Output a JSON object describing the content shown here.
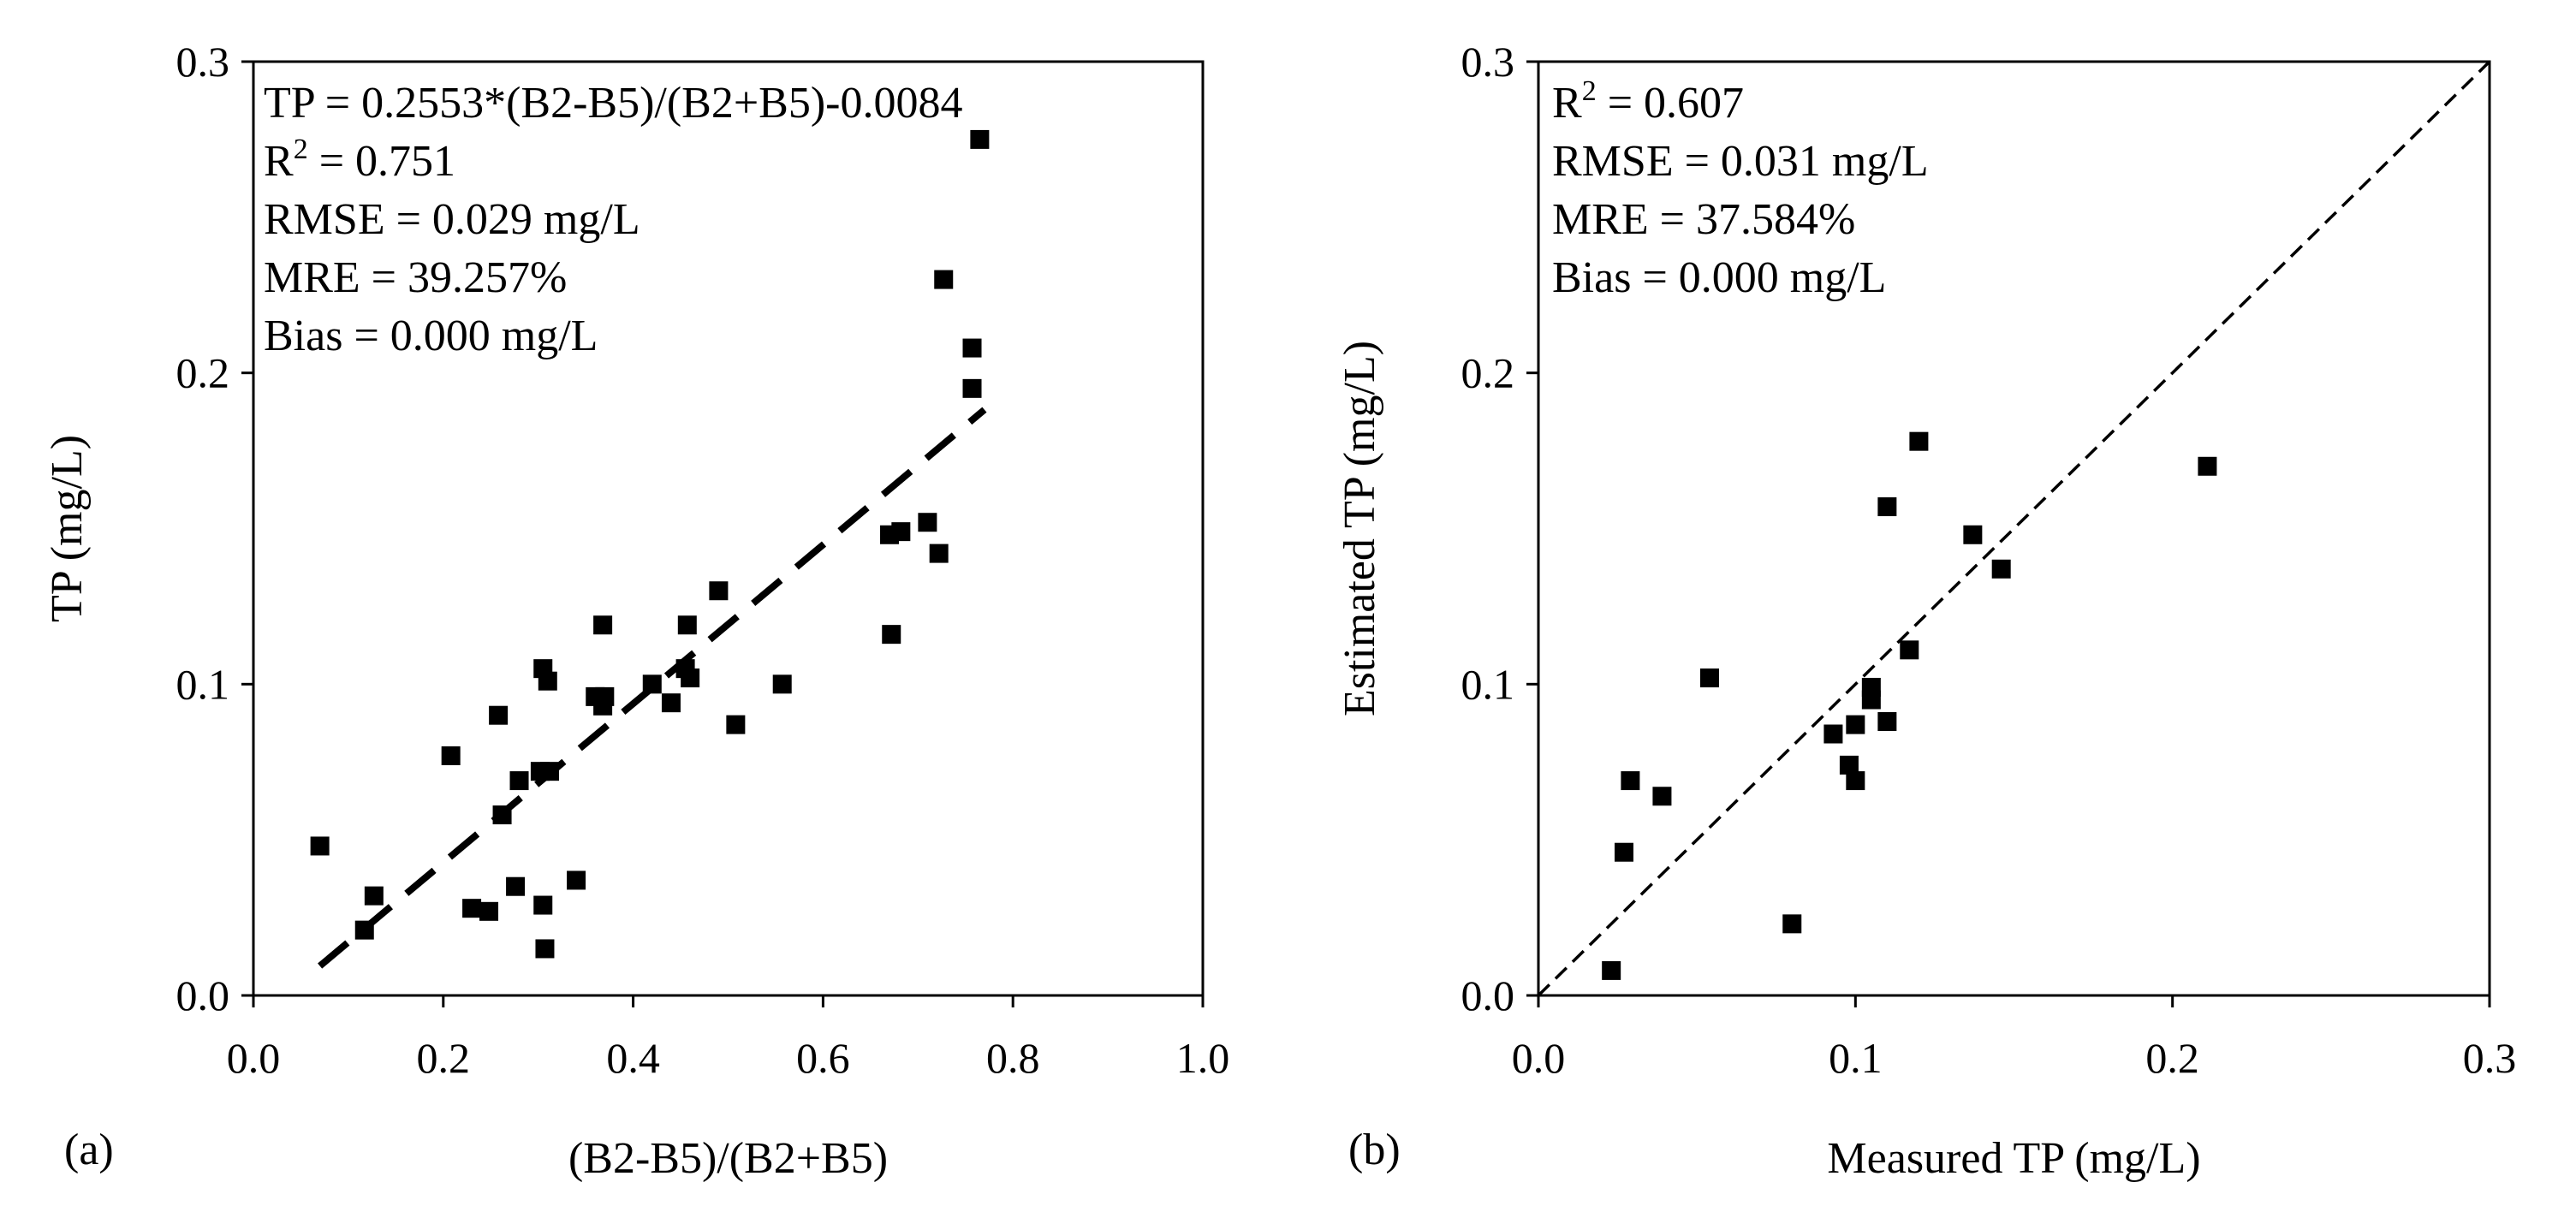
{
  "chart_data": [
    {
      "panel_label": "(a)",
      "type": "scatter",
      "xlabel": "(B2-B5)/(B2+B5)",
      "ylabel": "TP (mg/L)",
      "xlim": [
        0.0,
        1.0
      ],
      "ylim": [
        0.0,
        0.3
      ],
      "x_ticks": [
        0.0,
        0.2,
        0.4,
        0.6,
        0.8,
        1.0
      ],
      "x_tick_labels": [
        "0.0",
        "0.2",
        "0.4",
        "0.6",
        "0.8",
        "1.0"
      ],
      "y_ticks": [
        0.0,
        0.1,
        0.2,
        0.3
      ],
      "y_tick_labels": [
        "0.0",
        "0.1",
        "0.2",
        "0.3"
      ],
      "annotations": [
        {
          "text": "TP = 0.2553*(B2-B5)/(B2+B5)-0.0084"
        },
        {
          "text": "R",
          "sup": "2",
          "after": " = 0.751"
        },
        {
          "text": "RMSE = 0.029 mg/L"
        },
        {
          "text": "MRE = 39.257%"
        },
        {
          "text": "Bias = 0.000 mg/L"
        }
      ],
      "fit_line": {
        "slope": 0.2553,
        "intercept": -0.0084,
        "x_range": [
          0.07,
          0.77
        ],
        "style": "long-dash"
      },
      "points": [
        [
          0.07,
          0.048
        ],
        [
          0.117,
          0.021
        ],
        [
          0.127,
          0.032
        ],
        [
          0.208,
          0.077
        ],
        [
          0.23,
          0.028
        ],
        [
          0.248,
          0.027
        ],
        [
          0.258,
          0.09
        ],
        [
          0.262,
          0.058
        ],
        [
          0.276,
          0.035
        ],
        [
          0.28,
          0.069
        ],
        [
          0.302,
          0.072
        ],
        [
          0.305,
          0.105
        ],
        [
          0.305,
          0.029
        ],
        [
          0.307,
          0.015
        ],
        [
          0.31,
          0.101
        ],
        [
          0.312,
          0.072
        ],
        [
          0.34,
          0.037
        ],
        [
          0.36,
          0.096
        ],
        [
          0.368,
          0.119
        ],
        [
          0.368,
          0.093
        ],
        [
          0.37,
          0.096
        ],
        [
          0.42,
          0.1
        ],
        [
          0.44,
          0.094
        ],
        [
          0.455,
          0.105
        ],
        [
          0.457,
          0.119
        ],
        [
          0.46,
          0.102
        ],
        [
          0.49,
          0.13
        ],
        [
          0.508,
          0.087
        ],
        [
          0.557,
          0.1
        ],
        [
          0.67,
          0.148
        ],
        [
          0.672,
          0.116
        ],
        [
          0.682,
          0.149
        ],
        [
          0.71,
          0.152
        ],
        [
          0.722,
          0.142
        ],
        [
          0.727,
          0.23
        ],
        [
          0.757,
          0.208
        ],
        [
          0.757,
          0.195
        ],
        [
          0.765,
          0.275
        ]
      ]
    },
    {
      "panel_label": "(b)",
      "type": "scatter",
      "xlabel": "Measured  TP (mg/L)",
      "ylabel": "Estimated  TP (mg/L)",
      "xlim": [
        0.0,
        0.3
      ],
      "ylim": [
        0.0,
        0.3
      ],
      "x_ticks": [
        0.0,
        0.1,
        0.2,
        0.3
      ],
      "x_tick_labels": [
        "0.0",
        "0.1",
        "0.2",
        "0.3"
      ],
      "y_ticks": [
        0.0,
        0.1,
        0.2,
        0.3
      ],
      "y_tick_labels": [
        "0.0",
        "0.1",
        "0.2",
        "0.3"
      ],
      "annotations": [
        {
          "text": "R",
          "sup": "2",
          "after": " = 0.607"
        },
        {
          "text": "RMSE = 0.031 mg/L"
        },
        {
          "text": "MRE = 37.584%"
        },
        {
          "text": "Bias = 0.000 mg/L"
        }
      ],
      "reference_line": {
        "type": "1:1",
        "style": "dashed"
      },
      "points": [
        [
          0.023,
          0.008
        ],
        [
          0.027,
          0.046
        ],
        [
          0.029,
          0.069
        ],
        [
          0.039,
          0.064
        ],
        [
          0.054,
          0.102
        ],
        [
          0.08,
          0.023
        ],
        [
          0.093,
          0.084
        ],
        [
          0.098,
          0.074
        ],
        [
          0.1,
          0.069
        ],
        [
          0.1,
          0.087
        ],
        [
          0.105,
          0.099
        ],
        [
          0.105,
          0.095
        ],
        [
          0.11,
          0.088
        ],
        [
          0.11,
          0.157
        ],
        [
          0.117,
          0.111
        ],
        [
          0.12,
          0.178
        ],
        [
          0.137,
          0.148
        ],
        [
          0.146,
          0.137
        ],
        [
          0.211,
          0.17
        ]
      ]
    }
  ]
}
